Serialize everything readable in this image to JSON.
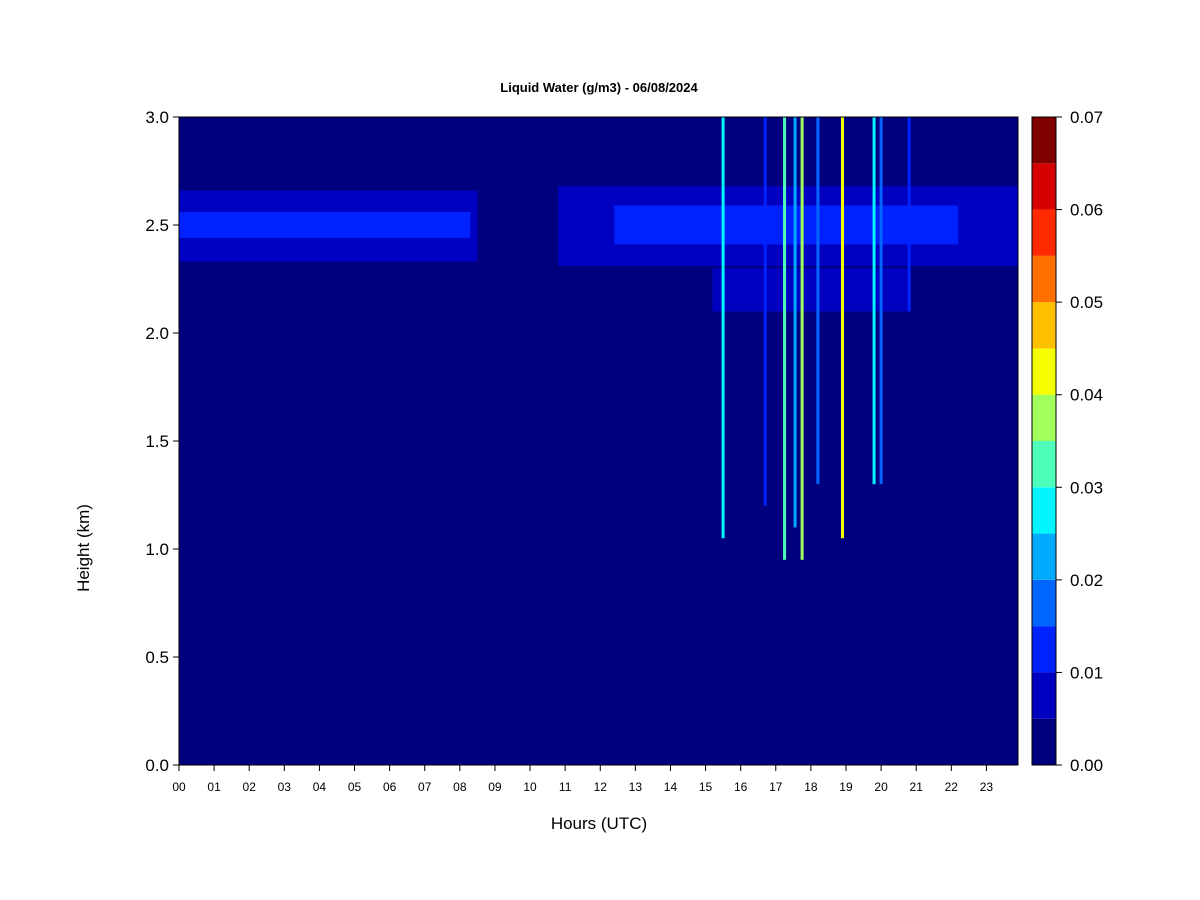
{
  "chart_data": {
    "type": "heatmap",
    "title": "Liquid Water (g/m3) - 06/08/2024",
    "xlabel": "Hours (UTC)",
    "ylabel": "Height (km)",
    "xlim": [
      0,
      23.9
    ],
    "ylim": [
      0,
      3.0
    ],
    "x_ticks": [
      "00",
      "01",
      "02",
      "03",
      "04",
      "05",
      "06",
      "07",
      "08",
      "09",
      "10",
      "11",
      "12",
      "13",
      "14",
      "15",
      "16",
      "17",
      "18",
      "19",
      "20",
      "21",
      "22",
      "23"
    ],
    "y_ticks": [
      "0.0",
      "0.5",
      "1.0",
      "1.5",
      "2.0",
      "2.5",
      "3.0"
    ],
    "colorbar": {
      "levels": [
        0.0,
        0.005,
        0.01,
        0.015,
        0.02,
        0.025,
        0.03,
        0.035,
        0.04,
        0.045,
        0.05,
        0.055,
        0.06,
        0.065,
        0.07
      ],
      "colors": [
        "#00007f",
        "#0000c0",
        "#0022ff",
        "#0066ff",
        "#00aaff",
        "#00f5ff",
        "#4dffb8",
        "#a0ff5a",
        "#f5ff00",
        "#ffc000",
        "#ff7000",
        "#ff2a00",
        "#d50000",
        "#800000"
      ],
      "labels": [
        "0.00",
        "0.01",
        "0.02",
        "0.03",
        "0.04",
        "0.05",
        "0.06",
        "0.07"
      ]
    },
    "background_value": 0.0,
    "cloud_layers": [
      {
        "x_start": 0.0,
        "x_end": 8.5,
        "y_start": 2.33,
        "y_end": 2.66,
        "value": 0.007
      },
      {
        "x_start": 0.0,
        "x_end": 8.3,
        "y_start": 2.44,
        "y_end": 2.56,
        "value": 0.012
      },
      {
        "x_start": 10.8,
        "x_end": 23.9,
        "y_start": 2.31,
        "y_end": 2.68,
        "value": 0.007
      },
      {
        "x_start": 12.4,
        "x_end": 22.2,
        "y_start": 2.41,
        "y_end": 2.59,
        "value": 0.012
      },
      {
        "x_start": 15.2,
        "x_end": 20.8,
        "y_start": 2.1,
        "y_end": 2.3,
        "value": 0.006
      }
    ],
    "precip_columns": [
      {
        "x": 15.5,
        "y_start": 1.05,
        "y_end": 3.0,
        "value": 0.025
      },
      {
        "x": 16.7,
        "y_start": 1.2,
        "y_end": 3.0,
        "value": 0.01
      },
      {
        "x": 17.25,
        "y_start": 0.95,
        "y_end": 3.0,
        "value": 0.03
      },
      {
        "x": 17.55,
        "y_start": 1.1,
        "y_end": 3.0,
        "value": 0.02
      },
      {
        "x": 17.75,
        "y_start": 0.95,
        "y_end": 3.0,
        "value": 0.035
      },
      {
        "x": 18.2,
        "y_start": 1.3,
        "y_end": 3.0,
        "value": 0.015
      },
      {
        "x": 18.9,
        "y_start": 1.05,
        "y_end": 3.0,
        "value": 0.04
      },
      {
        "x": 19.8,
        "y_start": 1.3,
        "y_end": 3.0,
        "value": 0.025
      },
      {
        "x": 20.0,
        "y_start": 1.3,
        "y_end": 3.0,
        "value": 0.015
      },
      {
        "x": 20.8,
        "y_start": 2.1,
        "y_end": 3.0,
        "value": 0.01
      }
    ]
  }
}
